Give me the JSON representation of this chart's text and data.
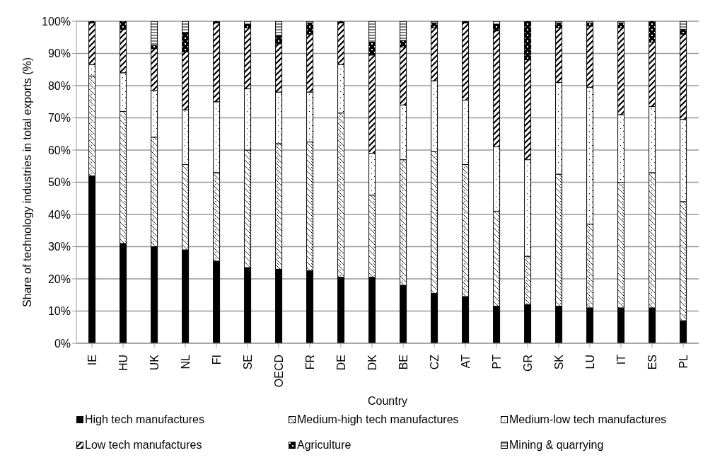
{
  "chart_data": {
    "type": "bar",
    "stacked": true,
    "xlabel": "Country",
    "ylabel": "Share of technology industries in total exports (%)",
    "categories": [
      "IE",
      "HU",
      "UK",
      "NL",
      "FI",
      "SE",
      "OECD",
      "FR",
      "DE",
      "DK",
      "BE",
      "CZ",
      "AT",
      "PT",
      "GR",
      "SK",
      "LU",
      "IT",
      "ES",
      "PL"
    ],
    "series": [
      {
        "name": "High tech manufactures",
        "color": "#000000",
        "values": [
          52,
          31,
          30,
          29,
          25.5,
          23.5,
          23,
          22.5,
          20.5,
          20.5,
          18,
          15.5,
          14.5,
          11.5,
          12,
          11.5,
          11,
          11,
          11,
          7
        ]
      },
      {
        "name": "Medium-high tech manufactures",
        "color": "#000000",
        "values": [
          31,
          41,
          34,
          26.5,
          27.5,
          36.5,
          39,
          40,
          51,
          25.5,
          39,
          44,
          41,
          29.5,
          15,
          41,
          26,
          39,
          42,
          37
        ]
      },
      {
        "name": "Medium-low tech manufactures",
        "color": "#000000",
        "values": [
          3.5,
          12,
          14.5,
          17,
          22,
          19,
          16,
          15.5,
          15,
          13,
          17,
          22,
          20,
          20,
          30,
          28.5,
          42.5,
          21,
          20.5,
          25.5
        ]
      },
      {
        "name": "Low tech manufactures",
        "color": "#000000",
        "values": [
          13,
          13.5,
          13,
          18,
          24.5,
          19,
          15,
          18,
          13,
          30.5,
          18,
          16.5,
          24,
          36,
          31,
          17,
          19,
          27,
          20,
          26.5
        ]
      },
      {
        "name": "Agriculture",
        "color": "#000000",
        "values": [
          0.5,
          2.5,
          1,
          6,
          0.5,
          1,
          2.5,
          3.5,
          0.5,
          4,
          2,
          1.5,
          0.5,
          2,
          12,
          1.5,
          1,
          1.5,
          6.5,
          1.5
        ]
      },
      {
        "name": "Mining & quarrying",
        "color": "#000000",
        "values": [
          0,
          0,
          7.5,
          3.5,
          0,
          1,
          4.5,
          0.5,
          0,
          6.5,
          6,
          0.5,
          0,
          1,
          0,
          0.5,
          0.5,
          0.5,
          0,
          2.5
        ]
      }
    ],
    "ylim": [
      0,
      100
    ],
    "yticks": [
      {
        "value": 0,
        "label": "0%"
      },
      {
        "value": 10,
        "label": "10%"
      },
      {
        "value": 20,
        "label": "20%"
      },
      {
        "value": 30,
        "label": "30%"
      },
      {
        "value": 40,
        "label": "40%"
      },
      {
        "value": 50,
        "label": "50%"
      },
      {
        "value": 60,
        "label": "60%"
      },
      {
        "value": 70,
        "label": "70%"
      },
      {
        "value": 80,
        "label": "80%"
      },
      {
        "value": 90,
        "label": "90%"
      },
      {
        "value": 100,
        "label": "100%"
      }
    ],
    "grid": "y",
    "legend": "bottom"
  }
}
